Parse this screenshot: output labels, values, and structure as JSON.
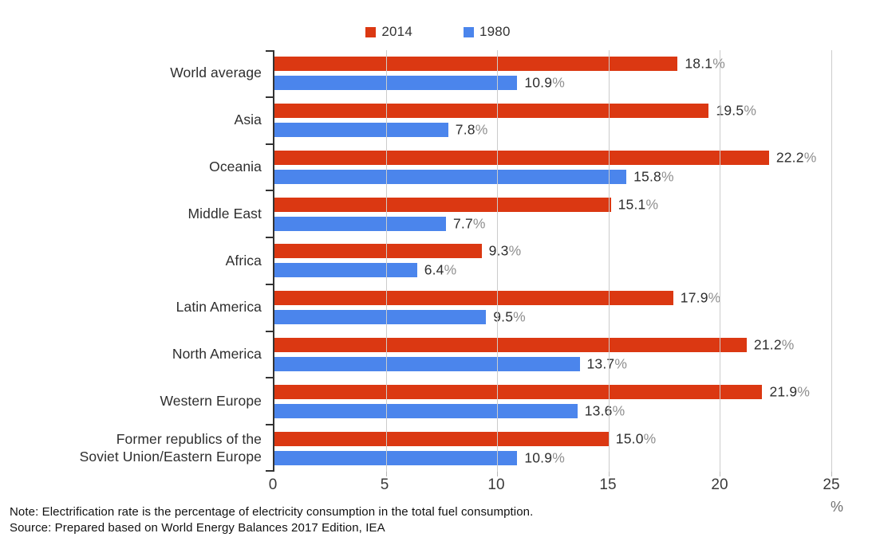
{
  "chart_data": {
    "type": "bar",
    "orientation": "horizontal",
    "title": "",
    "categories": [
      "World average",
      "Asia",
      "Oceania",
      "Middle East",
      "Africa",
      "Latin America",
      "North America",
      "Western Europe",
      "Former republics of the\nSoviet Union/Eastern Europe"
    ],
    "series": [
      {
        "name": "2014",
        "color": "#DB3812",
        "values": [
          18.1,
          19.5,
          22.2,
          15.1,
          9.3,
          17.9,
          21.2,
          21.9,
          15.0
        ]
      },
      {
        "name": "1980",
        "color": "#4B85EC",
        "values": [
          10.9,
          7.8,
          15.8,
          7.7,
          6.4,
          9.5,
          13.7,
          13.6,
          10.9
        ]
      }
    ],
    "value_suffix": "%",
    "xlim": [
      0,
      25
    ],
    "x_ticks": [
      0,
      5,
      10,
      15,
      20,
      25
    ],
    "x_unit": "%",
    "legend_position": "top-center",
    "grid": true,
    "colors": {
      "axis": "#333333",
      "gridline": "#cccccc",
      "value_text": "#2e2e2e",
      "value_suffix_text": "#8f8f8f"
    }
  },
  "notes": {
    "note": "Note: Electrification rate is the percentage of electricity consumption in the total fuel consumption.",
    "source": "Source: Prepared based on World Energy Balances 2017 Edition, IEA"
  }
}
